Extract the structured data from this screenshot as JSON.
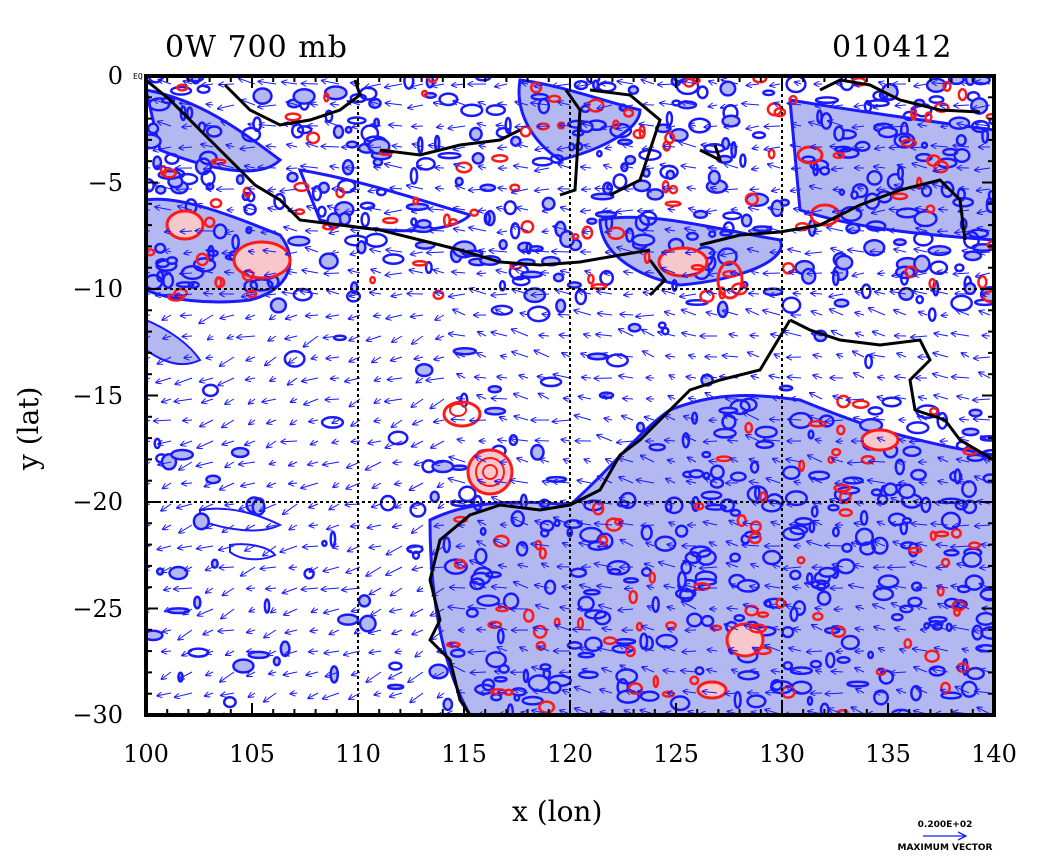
{
  "header": {
    "title_left": "0W 700 mb",
    "title_right": "010412"
  },
  "axes": {
    "xlabel": "x (lon)",
    "ylabel": "y (lat)",
    "xticks": [
      "100",
      "105",
      "110",
      "115",
      "120",
      "125",
      "130",
      "135",
      "140"
    ],
    "yticks": [
      "0",
      "−5",
      "−10",
      "−15",
      "−20",
      "−25",
      "−30"
    ],
    "xlim": [
      100,
      140
    ],
    "ylim": [
      -30,
      0
    ],
    "grid_x": [
      110,
      120,
      130
    ],
    "grid_y": [
      -10,
      -20
    ]
  },
  "legend": {
    "vector_value": "0.200E+02",
    "vector_label": "MAXIMUM VECTOR"
  },
  "corner_label": "EQ",
  "colors": {
    "contour_blue": "#1a1aff",
    "fill_blue": "#b3b8f0",
    "contour_red": "#ff1a1a",
    "fill_red": "#f6c8cc",
    "coastline": "#000000",
    "vector": "#1a1aff"
  }
}
